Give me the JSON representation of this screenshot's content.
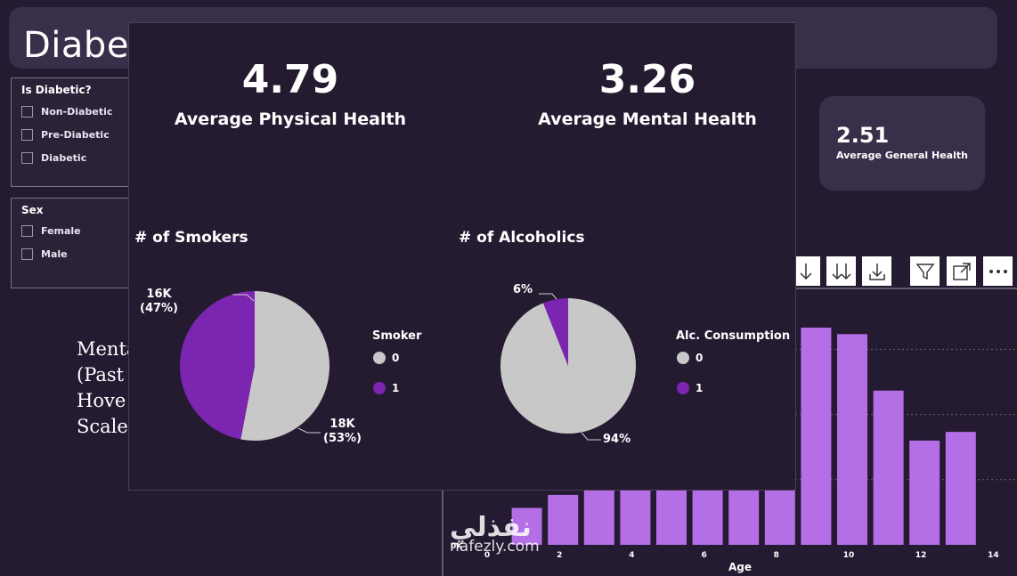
{
  "header": {
    "title": "Diabete"
  },
  "slicers": {
    "diabetic": {
      "title": "Is Diabetic?",
      "items": [
        "Non-Diabetic",
        "Pre-Diabetic",
        "Diabetic"
      ]
    },
    "sex": {
      "title": "Sex",
      "items": [
        "Female",
        "Male"
      ]
    }
  },
  "kpi_general": {
    "value": "2.51",
    "label": "Average General Health"
  },
  "background_text": {
    "lines": [
      "Menta",
      "(Past",
      "Hove",
      "Scale:"
    ]
  },
  "bar_chart": {
    "xlabel": "Age",
    "ytick_zero": "0K",
    "xticks": [
      "0",
      "2",
      "4",
      "6",
      "8",
      "10",
      "12",
      "14"
    ]
  },
  "toolbar": {
    "icons": [
      "arrow-down-icon",
      "double-arrow-down-icon",
      "drill-down-icon",
      "filter-icon",
      "focus-mode-icon",
      "more-options-icon"
    ]
  },
  "overlay": {
    "kpis": [
      {
        "value": "4.79",
        "label": "Average Physical Health"
      },
      {
        "value": "3.26",
        "label": "Average Mental Health"
      }
    ],
    "smokers": {
      "title": "# of Smokers",
      "legend_title": "Smoker",
      "legend": [
        "0",
        "1"
      ],
      "label_1_value": "16K",
      "label_1_pct": "(47%)",
      "label_0_value": "18K",
      "label_0_pct": "(53%)"
    },
    "alcoholics": {
      "title": "# of Alcoholics",
      "legend_title": "Alc. Consumption",
      "legend": [
        "0",
        "1"
      ],
      "label_1": "6%",
      "label_0": "94%"
    }
  },
  "colors": {
    "slice_0": "#c8c8c8",
    "slice_1": "#7b25b0",
    "bar": "#b46ee6"
  },
  "watermark": {
    "arabic": "نفذلي",
    "latin": "nafezly.com"
  },
  "chart_data": [
    {
      "type": "pie",
      "title": "# of Smokers",
      "legend_title": "Smoker",
      "categories": [
        "0",
        "1"
      ],
      "values": [
        18000,
        16000
      ],
      "percents": [
        53,
        47
      ]
    },
    {
      "type": "pie",
      "title": "# of Alcoholics",
      "legend_title": "Alc. Consumption",
      "categories": [
        "0",
        "1"
      ],
      "percents": [
        94,
        6
      ]
    },
    {
      "type": "bar",
      "xlabel": "Age",
      "xlim": [
        0,
        14
      ],
      "x": [
        1,
        2,
        3,
        4,
        5,
        6,
        7,
        8,
        9,
        10,
        11,
        12,
        13
      ],
      "values": [
        0.17,
        0.23,
        0.25,
        0.25,
        0.25,
        0.25,
        0.25,
        0.25,
        1.0,
        0.97,
        0.71,
        0.48,
        0.52
      ]
    }
  ]
}
